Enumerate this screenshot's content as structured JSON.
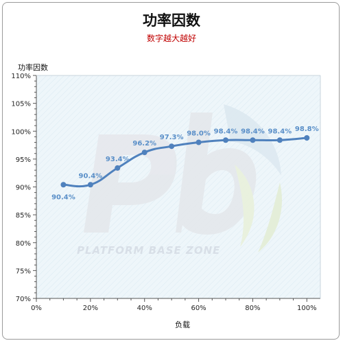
{
  "chart_data": {
    "type": "line",
    "title": "功率因数",
    "subtitle": "数字越大越好",
    "ylabel": "功率因数",
    "xlabel": "负载",
    "x": [
      10,
      20,
      30,
      40,
      50,
      60,
      70,
      80,
      90,
      100
    ],
    "x_ticks": [
      0,
      20,
      40,
      60,
      80,
      100
    ],
    "x_tick_labels": [
      "0%",
      "20%",
      "40%",
      "60%",
      "80%",
      "100%"
    ],
    "y_ticks": [
      70,
      75,
      80,
      85,
      90,
      95,
      100,
      105,
      110
    ],
    "y_tick_labels": [
      "70%",
      "75%",
      "80%",
      "85%",
      "90%",
      "95%",
      "100%",
      "105%",
      "110%"
    ],
    "xlim": [
      0,
      105
    ],
    "ylim": [
      70,
      110
    ],
    "series": [
      {
        "values": [
          90.4,
          90.4,
          93.4,
          96.2,
          97.3,
          98.0,
          98.4,
          98.4,
          98.4,
          98.8
        ],
        "labels": [
          "90.4%",
          "90.4%",
          "93.4%",
          "96.2%",
          "97.3%",
          "98.0%",
          "98.4%",
          "98.4%",
          "98.4%",
          "98.8%"
        ],
        "color": "#4f81bd"
      }
    ],
    "label_color": "#5a8fc8",
    "plot_background": "#eef6fa",
    "legend": "none",
    "grid": false,
    "watermark_text": "PLATFORM BASE ZONE"
  }
}
